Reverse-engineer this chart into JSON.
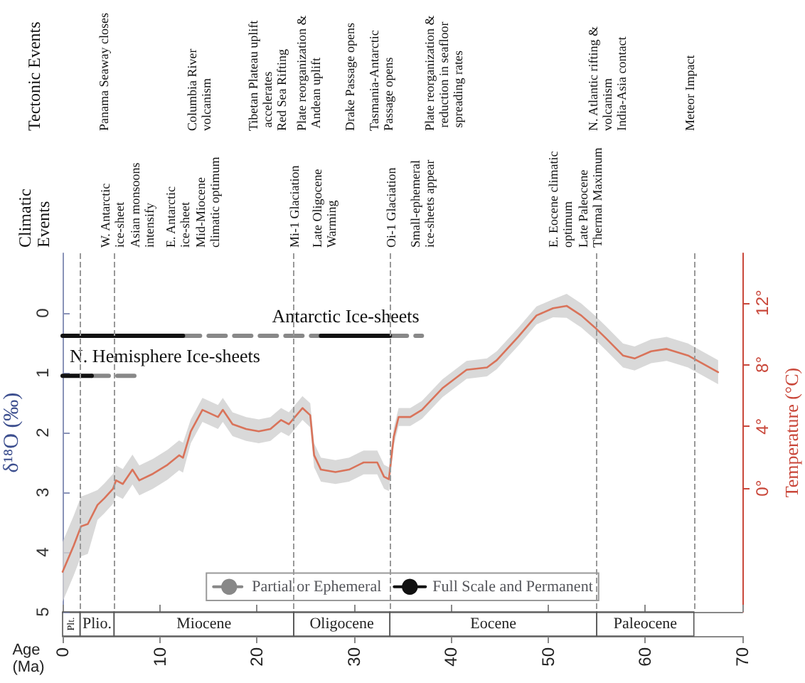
{
  "chart_data": {
    "type": "line",
    "xlabel": "Age (Ma)",
    "ylabel": "δ¹⁸O (‰)",
    "y2label": "Temperature (°C)",
    "xlim": [
      0,
      70
    ],
    "xticks": [
      0,
      10,
      20,
      30,
      40,
      50,
      60,
      70
    ],
    "ylim": [
      5,
      -1
    ],
    "yticks": [
      0,
      1,
      2,
      3,
      4,
      5
    ],
    "y2lim": [
      -8,
      15.2
    ],
    "y2ticks": [
      {
        "value": 0,
        "label": "0°"
      },
      {
        "value": 4,
        "label": "4°"
      },
      {
        "value": 8,
        "label": "8°"
      },
      {
        "value": 12,
        "label": "12°"
      }
    ],
    "grid": false,
    "legend": "bottom",
    "marker": "none",
    "series": [
      {
        "color": "#d9735a",
        "line_style": "solid",
        "x": [
          0,
          1.15,
          1.9,
          2.6,
          3.6,
          4.3,
          5.2,
          5.5,
          6.2,
          7.2,
          7.9,
          9.3,
          10.8,
          12.0,
          12.4,
          13.2,
          14.4,
          16.0,
          16.5,
          17.5,
          18.9,
          20.2,
          21.4,
          22.5,
          23.3,
          24.7,
          25.5,
          25.9,
          26.6,
          28.1,
          29.5,
          31.0,
          32.4,
          33.1,
          33.6,
          34.1,
          34.6,
          35.8,
          37.0,
          39.1,
          41.6,
          43.7,
          44.7,
          46.9,
          48.8,
          50.5,
          51.9,
          53.4,
          54.8,
          56.0,
          57.7,
          58.9,
          60.6,
          62.2,
          64.4,
          67.5
        ],
        "values": [
          4.33,
          3.89,
          3.57,
          3.53,
          3.21,
          3.1,
          2.94,
          2.8,
          2.86,
          2.62,
          2.8,
          2.69,
          2.54,
          2.38,
          2.42,
          1.98,
          1.62,
          1.74,
          1.62,
          1.86,
          1.94,
          1.98,
          1.94,
          1.79,
          1.86,
          1.59,
          1.71,
          2.38,
          2.62,
          2.66,
          2.62,
          2.5,
          2.5,
          2.74,
          2.78,
          2.07,
          1.74,
          1.74,
          1.62,
          1.26,
          0.95,
          0.91,
          0.79,
          0.4,
          0.04,
          -0.08,
          -0.12,
          0.04,
          0.24,
          0.43,
          0.71,
          0.76,
          0.64,
          0.6,
          0.71,
          0.99
        ],
        "lower": [
          3.83,
          3.39,
          3.07,
          3.03,
          2.96,
          2.85,
          2.69,
          2.55,
          2.61,
          2.37,
          2.55,
          2.44,
          2.29,
          2.13,
          2.17,
          1.78,
          1.42,
          1.54,
          1.42,
          1.66,
          1.74,
          1.78,
          1.74,
          1.59,
          1.66,
          1.39,
          1.51,
          2.18,
          2.42,
          2.46,
          2.42,
          2.3,
          2.3,
          2.54,
          2.58,
          1.92,
          1.59,
          1.59,
          1.47,
          1.11,
          0.8,
          0.76,
          0.64,
          0.25,
          -0.11,
          -0.23,
          -0.32,
          -0.16,
          0.04,
          0.23,
          0.51,
          0.56,
          0.44,
          0.4,
          0.51,
          0.79
        ],
        "upper": [
          4.83,
          4.39,
          4.07,
          4.03,
          3.46,
          3.35,
          3.19,
          3.05,
          3.11,
          2.87,
          3.05,
          2.94,
          2.79,
          2.63,
          2.67,
          2.18,
          1.82,
          1.94,
          1.82,
          2.06,
          2.14,
          2.18,
          2.14,
          1.99,
          2.06,
          1.79,
          1.91,
          2.58,
          2.82,
          2.86,
          2.82,
          2.7,
          2.7,
          2.94,
          2.98,
          2.22,
          1.89,
          1.89,
          1.77,
          1.41,
          1.1,
          1.06,
          0.94,
          0.55,
          0.19,
          0.07,
          0.08,
          0.24,
          0.44,
          0.63,
          0.91,
          0.96,
          0.84,
          0.8,
          0.91,
          1.19
        ]
      },
      {
        "name": "Partial or Ephemeral",
        "color": "#888888",
        "line_style": "dashed",
        "x": [
          3,
          7.9
        ],
        "values": [
          1.05,
          1.05
        ]
      },
      {
        "color": "#888888",
        "line_style": "dashed",
        "x": [
          12.4,
          26.6
        ],
        "values": [
          0.38,
          0.38
        ]
      },
      {
        "color": "#888888",
        "line_style": "dashed",
        "x": [
          33.7,
          37
        ],
        "values": [
          0.38,
          0.38
        ]
      },
      {
        "name": "Full Scale and Permanent",
        "color": "#111111",
        "line_style": "solid",
        "x": [
          0,
          3
        ],
        "values": [
          1.05,
          1.05
        ]
      },
      {
        "color": "#111111",
        "line_style": "solid",
        "x": [
          0,
          12.4
        ],
        "values": [
          0.38,
          0.38
        ]
      },
      {
        "color": "#111111",
        "line_style": "solid",
        "x": [
          26.6,
          33.7
        ],
        "values": [
          0.38,
          0.38
        ]
      }
    ],
    "ref_lines": [
      {
        "axis": "x",
        "value": 1.8,
        "line_style": "dashed",
        "color": "#999999"
      },
      {
        "axis": "x",
        "value": 5.3,
        "line_style": "dashed",
        "color": "#999999"
      },
      {
        "axis": "x",
        "value": 23.8,
        "line_style": "dashed",
        "color": "#999999"
      },
      {
        "axis": "x",
        "value": 33.7,
        "line_style": "dashed",
        "color": "#999999"
      },
      {
        "axis": "x",
        "value": 55,
        "line_style": "dashed",
        "color": "#999999"
      },
      {
        "axis": "x",
        "value": 65,
        "line_style": "dashed",
        "color": "#999999"
      }
    ],
    "annotations": [
      "Tectonic Events",
      "Panama Seaway closes",
      "Columbia River volcanism",
      "Tibetan Plateau uplift accelerates",
      "Red Sea Rifting",
      "Plate reorganization & Andean uplift",
      "Drake Passage opens",
      "Tasmania-Antarctic Passage opens",
      "Plate reorganization & reduction in seafloor spreading rates",
      "N. Atlantic rifting & volcanism",
      "India-Asia contact",
      "Meteor Impact",
      "Climatic Events",
      "W. Antarctic ice-sheet",
      "Asian monsoons intensify",
      "E. Antarctic ice-sheet",
      "Mid-Miocene climatic optimum",
      "Mi-1 Glaciation",
      "Late Oligocene Warming",
      "Oi-1 Glaciation",
      "Small-ephemeral ice-sheets appear",
      "E. Eocene climatic optimum",
      "Late Paleocene Thermal Maximum",
      "Antarctic Ice-sheets",
      "N. Hemisphere Ice-sheets",
      "Plt.",
      "Plio.",
      "Miocene",
      "Oligocene",
      "Eocene",
      "Paleocene"
    ]
  }
}
